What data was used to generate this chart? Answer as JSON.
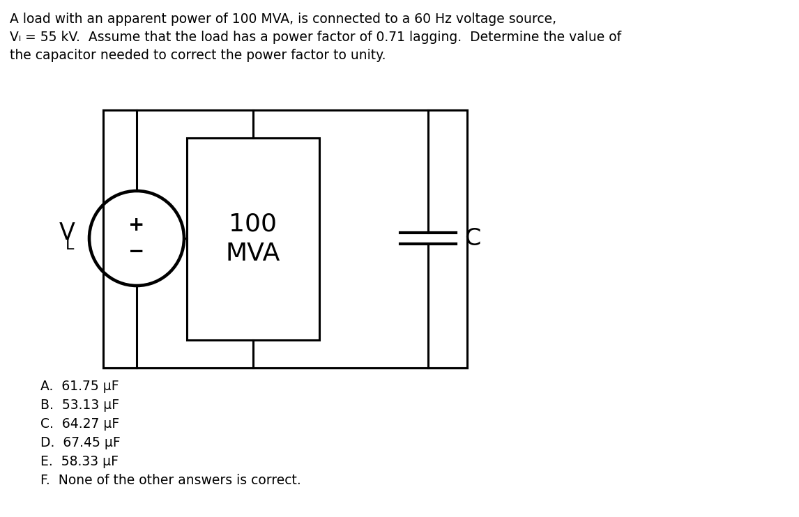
{
  "title_line1": "A load with an apparent power of 100 MVA, is connected to a 60 Hz voltage source,",
  "title_line2": "Vₗ = 55 kV.  Assume that the load has a power factor of 0.71 lagging.  Determine the value of",
  "title_line3": "the capacitor needed to correct the power factor to unity.",
  "choices": [
    "A.  61.75 μF",
    "B.  53.13 μF",
    "C.  64.27 μF",
    "D.  67.45 μF",
    "E.  58.33 μF",
    "F.  None of the other answers is correct."
  ],
  "bg_color": "#ffffff",
  "text_color": "#000000",
  "font_size_title": 13.5,
  "font_size_choices": 13.5,
  "lw": 2.2,
  "fig_w": 11.46,
  "fig_h": 7.42,
  "dpi": 100
}
